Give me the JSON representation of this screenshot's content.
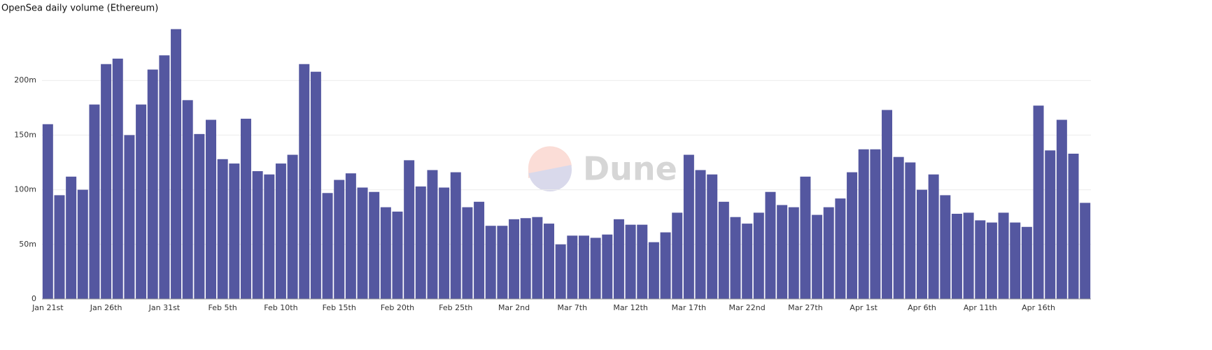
{
  "chart_data": {
    "type": "bar",
    "title": "OpenSea daily volume (Ethereum)",
    "watermark": "Dune",
    "color": "#5457a0",
    "grid": true,
    "categories": [
      "Jan 21st",
      null,
      null,
      null,
      null,
      "Jan 26th",
      null,
      null,
      null,
      null,
      "Jan 31st",
      null,
      null,
      null,
      null,
      "Feb 5th",
      null,
      null,
      null,
      null,
      "Feb 10th",
      null,
      null,
      null,
      null,
      "Feb 15th",
      null,
      null,
      null,
      null,
      "Feb 20th",
      null,
      null,
      null,
      null,
      "Feb 25th",
      null,
      null,
      null,
      null,
      "Mar 2nd",
      null,
      null,
      null,
      null,
      "Mar 7th",
      null,
      null,
      null,
      null,
      "Mar 12th",
      null,
      null,
      null,
      null,
      "Mar 17th",
      null,
      null,
      null,
      null,
      "Mar 22nd",
      null,
      null,
      null,
      null,
      "Mar 27th",
      null,
      null,
      null,
      null,
      "Apr 1st",
      null,
      null,
      null,
      null,
      "Apr 6th",
      null,
      null,
      null,
      null,
      "Apr 11th",
      null,
      null,
      null,
      null,
      "Apr 16th",
      null,
      null,
      null,
      null
    ],
    "values": [
      160000000,
      95000000,
      112000000,
      100000000,
      178000000,
      215000000,
      220000000,
      150000000,
      178000000,
      210000000,
      223000000,
      247000000,
      182000000,
      151000000,
      164000000,
      128000000,
      124000000,
      165000000,
      117000000,
      114000000,
      124000000,
      132000000,
      215000000,
      208000000,
      97000000,
      109000000,
      115000000,
      102000000,
      98000000,
      84000000,
      80000000,
      127000000,
      103000000,
      118000000,
      102000000,
      116000000,
      84000000,
      89000000,
      67000000,
      67000000,
      73000000,
      74000000,
      75000000,
      69000000,
      50000000,
      58000000,
      58000000,
      56000000,
      59000000,
      73000000,
      68000000,
      68000000,
      52000000,
      61000000,
      79000000,
      132000000,
      118000000,
      114000000,
      89000000,
      75000000,
      69000000,
      79000000,
      98000000,
      86000000,
      84000000,
      112000000,
      77000000,
      84000000,
      92000000,
      116000000,
      137000000,
      137000000,
      173000000,
      130000000,
      125000000,
      100000000,
      114000000,
      95000000,
      78000000,
      79000000,
      72000000,
      70000000,
      79000000,
      70000000,
      66000000,
      177000000,
      136000000,
      164000000,
      133000000,
      88000000
    ],
    "ylim": [
      0,
      250000000
    ],
    "yticks": [
      0,
      {
        "value": 50000000,
        "label": "50m"
      },
      {
        "value": 100000000,
        "label": "100m"
      },
      {
        "value": 150000000,
        "label": "150m"
      },
      {
        "value": 200000000,
        "label": "200m"
      }
    ]
  }
}
